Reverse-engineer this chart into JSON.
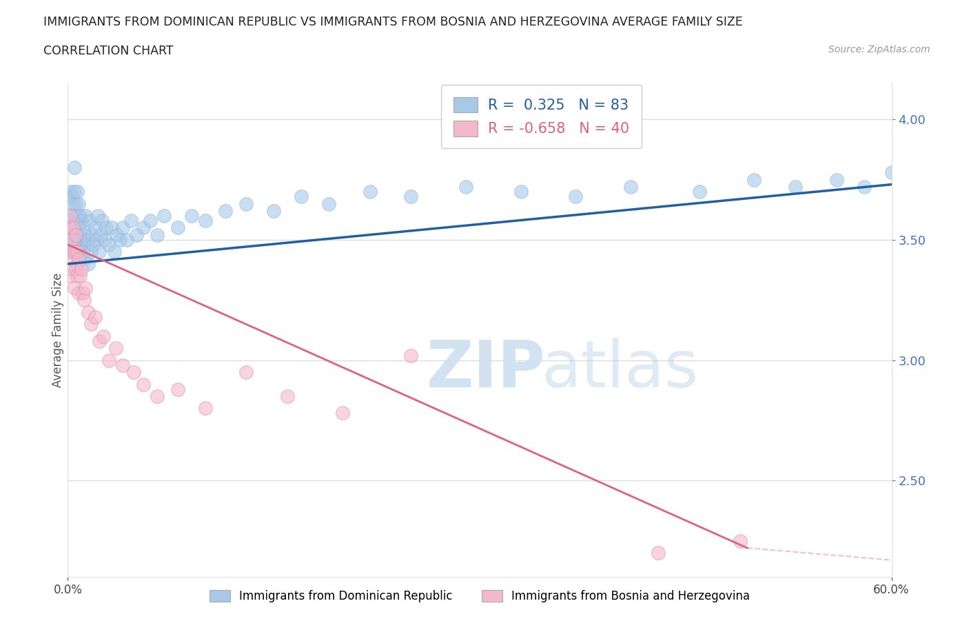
{
  "title_line1": "IMMIGRANTS FROM DOMINICAN REPUBLIC VS IMMIGRANTS FROM BOSNIA AND HERZEGOVINA AVERAGE FAMILY SIZE",
  "title_line2": "CORRELATION CHART",
  "source_text": "Source: ZipAtlas.com",
  "ylabel": "Average Family Size",
  "right_yticks": [
    2.5,
    3.0,
    3.5,
    4.0
  ],
  "legend_blue_r": "0.325",
  "legend_blue_n": "83",
  "legend_pink_r": "-0.658",
  "legend_pink_n": "40",
  "legend_label_blue": "Immigrants from Dominican Republic",
  "legend_label_pink": "Immigrants from Bosnia and Herzegovina",
  "blue_color": "#a8c8e8",
  "pink_color": "#f4b8cc",
  "blue_line_color": "#2060a0",
  "pink_line_color": "#e06080",
  "blue_scatter_x": [
    0.001,
    0.001,
    0.002,
    0.002,
    0.002,
    0.003,
    0.003,
    0.003,
    0.004,
    0.004,
    0.004,
    0.005,
    0.005,
    0.005,
    0.005,
    0.006,
    0.006,
    0.006,
    0.007,
    0.007,
    0.007,
    0.007,
    0.008,
    0.008,
    0.008,
    0.009,
    0.009,
    0.01,
    0.01,
    0.011,
    0.011,
    0.012,
    0.012,
    0.013,
    0.013,
    0.014,
    0.015,
    0.015,
    0.016,
    0.017,
    0.018,
    0.019,
    0.02,
    0.021,
    0.022,
    0.023,
    0.024,
    0.025,
    0.027,
    0.028,
    0.03,
    0.032,
    0.034,
    0.036,
    0.038,
    0.04,
    0.043,
    0.046,
    0.05,
    0.055,
    0.06,
    0.065,
    0.07,
    0.08,
    0.09,
    0.1,
    0.115,
    0.13,
    0.15,
    0.17,
    0.19,
    0.22,
    0.25,
    0.29,
    0.33,
    0.37,
    0.41,
    0.46,
    0.5,
    0.53,
    0.56,
    0.58,
    0.6
  ],
  "blue_scatter_y": [
    3.45,
    3.55,
    3.5,
    3.6,
    3.7,
    3.48,
    3.58,
    3.68,
    3.45,
    3.55,
    3.65,
    3.5,
    3.6,
    3.7,
    3.8,
    3.45,
    3.55,
    3.65,
    3.4,
    3.5,
    3.6,
    3.7,
    3.45,
    3.55,
    3.65,
    3.5,
    3.6,
    3.48,
    3.58,
    3.45,
    3.55,
    3.42,
    3.52,
    3.5,
    3.6,
    3.48,
    3.4,
    3.5,
    3.58,
    3.45,
    3.52,
    3.48,
    3.55,
    3.5,
    3.6,
    3.45,
    3.52,
    3.58,
    3.5,
    3.55,
    3.48,
    3.55,
    3.45,
    3.52,
    3.5,
    3.55,
    3.5,
    3.58,
    3.52,
    3.55,
    3.58,
    3.52,
    3.6,
    3.55,
    3.6,
    3.58,
    3.62,
    3.65,
    3.62,
    3.68,
    3.65,
    3.7,
    3.68,
    3.72,
    3.7,
    3.68,
    3.72,
    3.7,
    3.75,
    3.72,
    3.75,
    3.72,
    3.78
  ],
  "pink_scatter_x": [
    0.001,
    0.001,
    0.002,
    0.002,
    0.003,
    0.003,
    0.004,
    0.004,
    0.005,
    0.005,
    0.006,
    0.006,
    0.007,
    0.007,
    0.008,
    0.008,
    0.009,
    0.01,
    0.011,
    0.012,
    0.013,
    0.015,
    0.017,
    0.02,
    0.023,
    0.026,
    0.03,
    0.035,
    0.04,
    0.048,
    0.055,
    0.065,
    0.08,
    0.1,
    0.13,
    0.16,
    0.2,
    0.25,
    0.43,
    0.49
  ],
  "pink_scatter_y": [
    3.55,
    3.35,
    3.45,
    3.6,
    3.5,
    3.38,
    3.42,
    3.55,
    3.45,
    3.3,
    3.38,
    3.52,
    3.35,
    3.45,
    3.28,
    3.42,
    3.35,
    3.38,
    3.28,
    3.25,
    3.3,
    3.2,
    3.15,
    3.18,
    3.08,
    3.1,
    3.0,
    3.05,
    2.98,
    2.95,
    2.9,
    2.85,
    2.88,
    2.8,
    2.95,
    2.85,
    2.78,
    3.02,
    2.2,
    2.25
  ],
  "xlim": [
    0.0,
    0.6
  ],
  "ylim_min": 2.1,
  "ylim_max": 4.15,
  "blue_trend_x0": 0.0,
  "blue_trend_x1": 0.6,
  "blue_trend_y0": 3.4,
  "blue_trend_y1": 3.73,
  "pink_trend_x0": 0.0,
  "pink_trend_x1": 0.495,
  "pink_trend_y0": 3.48,
  "pink_trend_y1": 2.22,
  "grid_color": "#dddddd",
  "title_fontsize": 12.5,
  "axis_label_color": "#555555",
  "right_tick_color": "#4472c4"
}
